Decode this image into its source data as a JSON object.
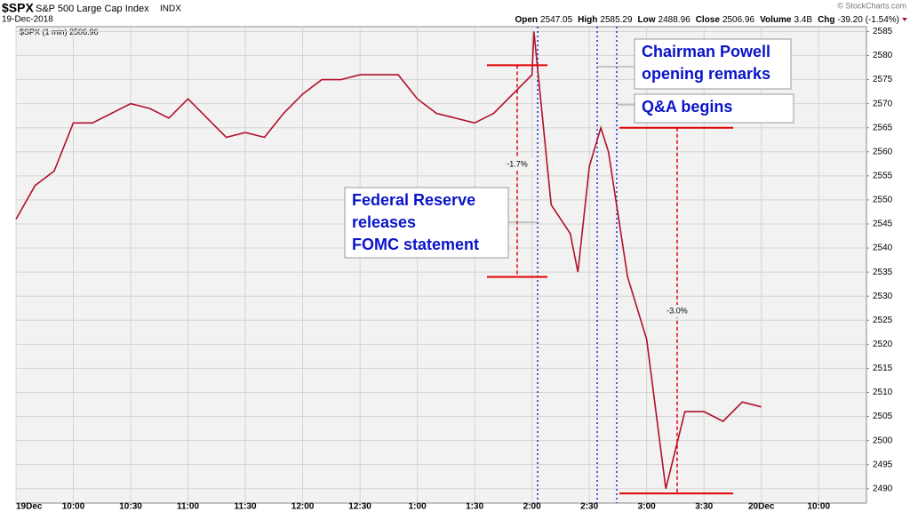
{
  "chart_data": {
    "type": "line",
    "symbol": "$SPX",
    "title": "S&P 500 Large Cap Index",
    "exchange": "INDX",
    "date": "19-Dec-2018",
    "credit": "© StockCharts.com",
    "stats": [
      {
        "label": "Open",
        "value": 2547.05
      },
      {
        "label": "High",
        "value": 2585.29
      },
      {
        "label": "Low",
        "value": 2488.96
      },
      {
        "label": "Close",
        "value": 2506.96
      },
      {
        "label": "Volume",
        "value": "3.4B"
      },
      {
        "label": "Chg",
        "value": "-39.20 (-1.54%)"
      }
    ],
    "x": [
      "9:30",
      "9:40",
      "9:50",
      "10:00",
      "10:10",
      "10:20",
      "10:30",
      "10:40",
      "10:50",
      "11:00",
      "11:10",
      "11:20",
      "11:30",
      "11:40",
      "11:50",
      "12:00",
      "12:10",
      "12:20",
      "12:30",
      "12:40",
      "12:50",
      "1:00",
      "1:10",
      "1:20",
      "1:30",
      "1:40",
      "1:50",
      "2:00",
      "2:01",
      "2:10",
      "2:20",
      "2:24",
      "2:30",
      "2:36",
      "2:40",
      "2:50",
      "3:00",
      "3:10",
      "3:20",
      "3:30",
      "3:40",
      "3:50",
      "4:00"
    ],
    "series": [
      {
        "name": "$SPX (1 min)",
        "color": "#b0102c",
        "values": [
          2546,
          2553,
          2556,
          2566,
          2566,
          2568,
          2570,
          2569,
          2567,
          2571,
          2567,
          2563,
          2564,
          2563,
          2568,
          2572,
          2575,
          2575,
          2576,
          2576,
          2576,
          2571,
          2568,
          2567,
          2566,
          2568,
          2572,
          2576,
          2585,
          2549,
          2543,
          2535,
          2557,
          2565,
          2560,
          2534,
          2521,
          2490,
          2506,
          2506,
          2504,
          2508,
          2507
        ]
      }
    ],
    "xlim": [
      "9:30",
      "4:55"
    ],
    "xticks": [
      {
        "value": "9:30",
        "label": "19Dec"
      },
      "10:00",
      "10:30",
      "11:00",
      "11:30",
      "12:00",
      "12:30",
      "1:00",
      "1:30",
      "2:00",
      "2:30",
      "3:00",
      "3:30",
      {
        "value": "4:00",
        "label": "20Dec"
      },
      {
        "value": "4:30",
        "label": "10:00"
      }
    ],
    "ylim": [
      2487,
      2586
    ],
    "yticks": [
      2490,
      2495,
      2500,
      2505,
      2510,
      2515,
      2520,
      2525,
      2530,
      2535,
      2540,
      2545,
      2550,
      2555,
      2560,
      2565,
      2570,
      2575,
      2580,
      2585
    ],
    "grid": true,
    "ranges": [
      {
        "label": "-1.7%",
        "high": 2578,
        "low": 2534
      },
      {
        "label": "-3.0%",
        "high": 2565,
        "low": 2489
      }
    ],
    "callouts": [
      {
        "lines": [
          "Chairman Powell",
          "opening remarks"
        ]
      },
      {
        "lines": [
          "Q&A begins"
        ]
      },
      {
        "lines": [
          "Federal Reserve",
          "releases",
          "FOMC statement"
        ]
      }
    ]
  }
}
